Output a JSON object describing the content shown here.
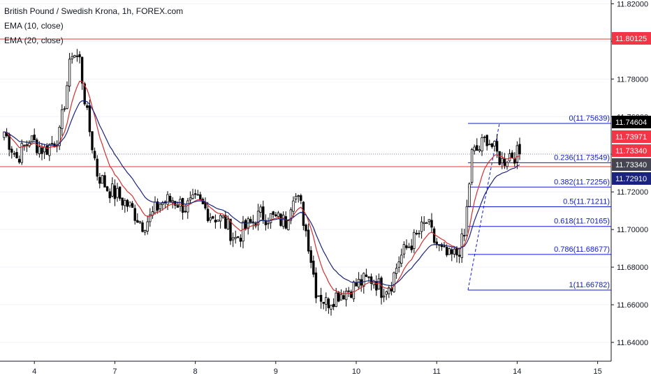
{
  "legend": {
    "title": "British Pound / Swedish Krona, 1h, FOREX.com",
    "ema10": "EMA (10, close)",
    "ema20": "EMA (20, close)"
  },
  "colors": {
    "up_candle": "#ffffff",
    "down_candle": "#000000",
    "wick": "#000000",
    "ema10": "#d32f2f",
    "ema20": "#1a237e",
    "hline": "#e53935",
    "fib": "#0d1bd6"
  },
  "chart_data": {
    "type": "candlestick",
    "title": "British Pound / Swedish Krona, 1h, FOREX.com",
    "ylim": [
      11.63,
      11.822
    ],
    "y_ticks": [
      "11.82000",
      "11.80000",
      "11.78000",
      "11.76000",
      "11.74000",
      "11.72000",
      "11.70000",
      "11.68000",
      "11.66000",
      "11.64000"
    ],
    "x_ticks": [
      "4",
      "7",
      "8",
      "9",
      "10",
      "11",
      "14",
      "15"
    ],
    "price_labels": [
      {
        "text": "11.80125",
        "bg": "#f23645",
        "fg": "#ffffff"
      },
      {
        "text": "11.74604",
        "bg": "#000000",
        "fg": "#ffffff"
      },
      {
        "text": "11.73971",
        "bg": "#f23645",
        "fg": "#ffffff"
      },
      {
        "text": "11.73340",
        "bg": "#f23645",
        "fg": "#ffffff"
      },
      {
        "text": "11.73340",
        "bg": "#434651",
        "fg": "#ffffff"
      },
      {
        "text": "11.72910",
        "bg": "#1a237e",
        "fg": "#ffffff"
      }
    ],
    "horizontal_lines": [
      11.80125,
      11.7334
    ],
    "fibonacci": [
      {
        "label": "0(11.75639)",
        "price": 11.75639
      },
      {
        "label": "0.236(11.73549)",
        "price": 11.73549
      },
      {
        "label": "0.382(11.72256)",
        "price": 11.72256
      },
      {
        "label": "0.5(11.71211)",
        "price": 11.71211
      },
      {
        "label": "0.618(11.70165)",
        "price": 11.70165
      },
      {
        "label": "0.786(11.68677)",
        "price": 11.68677
      },
      {
        "label": "1(11.66782)",
        "price": 11.66782
      }
    ],
    "anchors": [
      [
        0,
        11.752
      ],
      [
        5,
        11.738
      ],
      [
        10,
        11.748
      ],
      [
        16,
        11.742
      ],
      [
        22,
        11.75
      ],
      [
        27,
        11.795
      ],
      [
        30,
        11.79
      ],
      [
        33,
        11.76
      ],
      [
        37,
        11.73
      ],
      [
        41,
        11.722
      ],
      [
        45,
        11.718
      ],
      [
        50,
        11.712
      ],
      [
        55,
        11.703
      ],
      [
        58,
        11.706
      ],
      [
        62,
        11.714
      ],
      [
        67,
        11.716
      ],
      [
        72,
        11.712
      ],
      [
        77,
        11.715
      ],
      [
        82,
        11.708
      ],
      [
        87,
        11.705
      ],
      [
        92,
        11.695
      ],
      [
        97,
        11.702
      ],
      [
        102,
        11.708
      ],
      [
        107,
        11.706
      ],
      [
        112,
        11.704
      ],
      [
        115,
        11.72
      ],
      [
        118,
        11.712
      ],
      [
        121,
        11.693
      ],
      [
        124,
        11.668
      ],
      [
        128,
        11.661
      ],
      [
        133,
        11.666
      ],
      [
        137,
        11.668
      ],
      [
        142,
        11.672
      ],
      [
        147,
        11.674
      ],
      [
        150,
        11.668
      ],
      [
        154,
        11.672
      ],
      [
        157,
        11.684
      ],
      [
        160,
        11.69
      ],
      [
        164,
        11.696
      ],
      [
        168,
        11.704
      ],
      [
        171,
        11.694
      ],
      [
        174,
        11.688
      ],
      [
        177,
        11.685
      ],
      [
        180,
        11.687
      ],
      [
        183,
        11.696
      ],
      [
        186,
        11.74
      ],
      [
        189,
        11.743
      ],
      [
        192,
        11.749
      ],
      [
        195,
        11.742
      ],
      [
        198,
        11.736
      ],
      [
        201,
        11.74
      ]
    ]
  }
}
